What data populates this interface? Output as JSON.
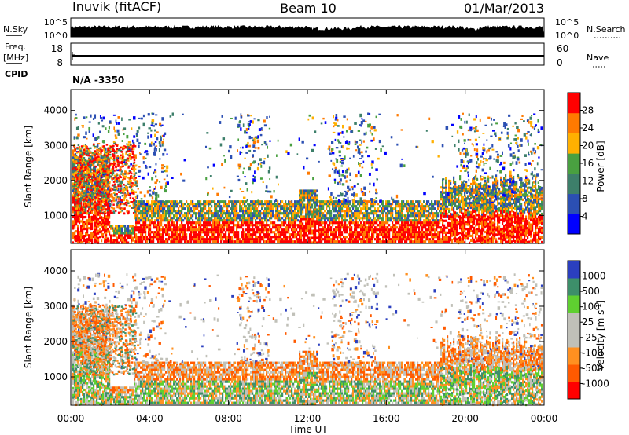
{
  "header": {
    "station": "Inuvik (fitACF)",
    "beam": "Beam 10",
    "date": "01/Mar/2013"
  },
  "sky_panel": {
    "left_label": "N.Sky",
    "right_label": "N.Search",
    "left_ticks": [
      "10^5",
      "10^0"
    ],
    "right_ticks": [
      "10^5",
      "10^0"
    ]
  },
  "freq_panel": {
    "left_label_1": "Freq.",
    "left_label_2": "[MHz]",
    "right_label": "Nave",
    "left_ticks": [
      "18",
      "8"
    ],
    "right_ticks": [
      "60",
      "0"
    ]
  },
  "cpid": {
    "label": "CPID",
    "value": "N/A -3350"
  },
  "chart_data": [
    {
      "type": "heatmap",
      "name": "power",
      "ylabel": "Slant Range [km]",
      "y_ticks": [
        "4000",
        "3000",
        "2000",
        "1000"
      ],
      "yrange_km": [
        200,
        4600
      ],
      "colorbar_label": "Power [dB]",
      "colorbar_ticks": [
        "28",
        "24",
        "20",
        "16",
        "12",
        "8",
        "4"
      ],
      "colorbar_colors": [
        "#0000ff",
        "#2b4fb3",
        "#3d7f6a",
        "#49a040",
        "#ffb000",
        "#ff7a00",
        "#ff0000"
      ]
    },
    {
      "type": "heatmap",
      "name": "velocity",
      "ylabel": "Slant Range [km]",
      "y_ticks": [
        "4000",
        "3000",
        "2000",
        "1000"
      ],
      "yrange_km": [
        200,
        4600
      ],
      "colorbar_label": "Velocity [m s",
      "colorbar_label_sup": "-1",
      "colorbar_label_end": "]",
      "colorbar_ticks": [
        "1000",
        "500",
        "100",
        "25",
        "-25",
        "-100",
        "-500",
        "-1000"
      ],
      "colorbar_colors": [
        "#ff0000",
        "#ff5a00",
        "#ff9020",
        "#c0c0b8",
        "#c0c0b8",
        "#5fd030",
        "#3d8f6a",
        "#2b3fbf"
      ]
    }
  ],
  "x_axis": {
    "ticks": [
      "00:00",
      "04:00",
      "08:00",
      "12:00",
      "16:00",
      "20:00",
      "00:00"
    ],
    "label": "Time UT"
  }
}
